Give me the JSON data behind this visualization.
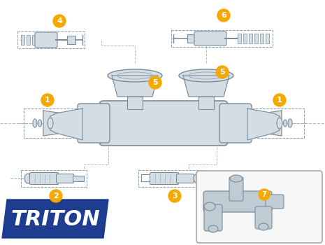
{
  "bg_color": "#ffffff",
  "label_bg": "#f5a800",
  "line_color": "#b0bec5",
  "part_color": "#d4dde3",
  "part_outline": "#7a8c9a",
  "part_outline2": "#9aacb8",
  "triton_bg": "#1e3d8f",
  "inset_border": "#999999",
  "inset_bg": "#f5f5f5"
}
